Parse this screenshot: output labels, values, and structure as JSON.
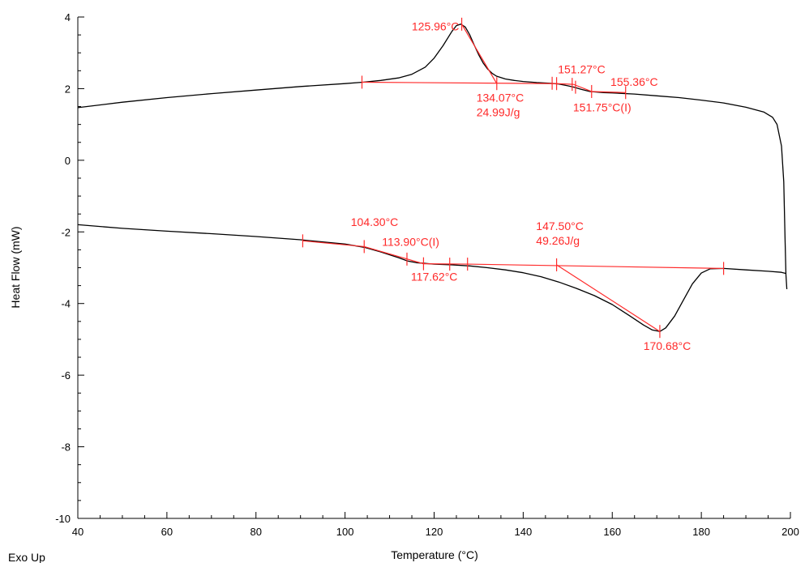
{
  "chart_data": {
    "type": "line",
    "xlabel": "Temperature (°C)",
    "ylabel": "Heat Flow (mW)",
    "footer_label": "Exo Up",
    "xlim": [
      40,
      200
    ],
    "ylim": [
      -10,
      4
    ],
    "x_ticks": [
      40,
      60,
      80,
      100,
      120,
      140,
      160,
      180,
      200
    ],
    "y_ticks": [
      4,
      2,
      0,
      -2,
      -4,
      -6,
      -8,
      -10
    ],
    "x_minor_step": 5,
    "y_minor_step": 0.5,
    "grid": false,
    "colors": {
      "curve": "#000000",
      "analysis": "#ff2a2a",
      "axis": "#000000"
    },
    "series": [
      {
        "x": [
          40,
          50,
          60,
          70,
          80,
          90,
          100,
          104,
          108,
          112,
          115,
          118,
          120,
          122,
          124,
          125,
          126,
          127,
          128,
          129,
          130,
          131,
          132,
          133,
          134,
          136,
          138,
          140,
          143,
          146,
          148,
          150,
          151.5,
          153,
          155,
          158,
          160,
          165,
          170,
          175,
          180,
          185,
          190,
          194,
          196,
          197,
          198,
          198.5,
          198.8,
          199,
          199.2
        ],
        "y": [
          1.47,
          1.62,
          1.75,
          1.86,
          1.96,
          2.06,
          2.14,
          2.18,
          2.23,
          2.3,
          2.4,
          2.6,
          2.85,
          3.2,
          3.6,
          3.76,
          3.8,
          3.72,
          3.5,
          3.22,
          2.95,
          2.72,
          2.55,
          2.43,
          2.35,
          2.27,
          2.23,
          2.2,
          2.17,
          2.15,
          2.13,
          2.08,
          2.04,
          1.98,
          1.92,
          1.89,
          1.88,
          1.85,
          1.8,
          1.75,
          1.68,
          1.6,
          1.48,
          1.35,
          1.2,
          1.0,
          0.4,
          -0.6,
          -2.2,
          -3.2,
          -3.6
        ]
      },
      {
        "x": [
          40,
          50,
          60,
          70,
          80,
          90,
          100,
          104.3,
          108,
          112,
          114,
          116,
          118,
          120,
          124,
          128,
          132,
          136,
          140,
          144,
          148,
          152,
          156,
          160,
          164,
          167,
          169,
          170.7,
          172,
          174,
          176,
          178,
          180,
          182,
          185,
          190,
          195,
          198,
          199
        ],
        "y": [
          -1.8,
          -1.9,
          -1.98,
          -2.05,
          -2.13,
          -2.22,
          -2.34,
          -2.43,
          -2.56,
          -2.72,
          -2.81,
          -2.86,
          -2.88,
          -2.9,
          -2.92,
          -2.95,
          -3.0,
          -3.06,
          -3.14,
          -3.25,
          -3.4,
          -3.58,
          -3.78,
          -4.03,
          -4.35,
          -4.6,
          -4.74,
          -4.78,
          -4.68,
          -4.35,
          -3.9,
          -3.45,
          -3.15,
          -3.03,
          -3.02,
          -3.06,
          -3.1,
          -3.13,
          -3.16
        ]
      }
    ],
    "analysis_lines": [
      {
        "x": [
          103.8,
          147.5
        ],
        "y": [
          2.18,
          2.14
        ]
      },
      {
        "x": [
          126.2,
          134.07
        ],
        "y": [
          3.8,
          2.14
        ]
      },
      {
        "x": [
          147.5,
          151.27
        ],
        "y": [
          2.14,
          2.12
        ]
      },
      {
        "x": [
          151.27,
          155.36
        ],
        "y": [
          2.12,
          1.92
        ]
      },
      {
        "x": [
          155.36,
          163.0
        ],
        "y": [
          1.92,
          1.89
        ]
      },
      {
        "x": [
          90.5,
          104.3
        ],
        "y": [
          -2.25,
          -2.41
        ]
      },
      {
        "x": [
          104.3,
          117.62
        ],
        "y": [
          -2.41,
          -2.89
        ]
      },
      {
        "x": [
          117.62,
          127.5
        ],
        "y": [
          -2.89,
          -2.9
        ]
      },
      {
        "x": [
          127.5,
          185.0
        ],
        "y": [
          -2.9,
          -3.02
        ]
      },
      {
        "x": [
          147.5,
          170.68
        ],
        "y": [
          -2.92,
          -4.78
        ]
      }
    ],
    "markers": [
      {
        "x": 103.8,
        "y": 2.18
      },
      {
        "x": 126.2,
        "y": 3.8
      },
      {
        "x": 134.07,
        "y": 2.14
      },
      {
        "x": 146.5,
        "y": 2.15
      },
      {
        "x": 147.5,
        "y": 2.14
      },
      {
        "x": 151.0,
        "y": 2.12
      },
      {
        "x": 151.75,
        "y": 2.04
      },
      {
        "x": 155.36,
        "y": 1.92
      },
      {
        "x": 163.0,
        "y": 1.89
      },
      {
        "x": 90.5,
        "y": -2.25
      },
      {
        "x": 104.3,
        "y": -2.41
      },
      {
        "x": 113.9,
        "y": -2.76
      },
      {
        "x": 117.62,
        "y": -2.89
      },
      {
        "x": 123.5,
        "y": -2.9
      },
      {
        "x": 127.5,
        "y": -2.9
      },
      {
        "x": 147.5,
        "y": -2.92
      },
      {
        "x": 170.68,
        "y": -4.78
      },
      {
        "x": 185.0,
        "y": -3.02
      }
    ],
    "annotations": [
      {
        "lines": [
          "125.96°C"
        ],
        "x": 120.3,
        "y": 3.63,
        "anchor": "middle"
      },
      {
        "lines": [
          "134.07°C",
          "24.99J/g"
        ],
        "x": 129.5,
        "y": 1.64,
        "anchor": "start"
      },
      {
        "lines": [
          "151.27°C"
        ],
        "x": 147.8,
        "y": 2.43,
        "anchor": "start"
      },
      {
        "lines": [
          "155.36°C"
        ],
        "x": 159.6,
        "y": 2.08,
        "anchor": "start"
      },
      {
        "lines": [
          "151.75°C(I)"
        ],
        "x": 151.2,
        "y": 1.36,
        "anchor": "start"
      },
      {
        "lines": [
          "104.30°C"
        ],
        "x": 101.3,
        "y": -1.84,
        "anchor": "start"
      },
      {
        "lines": [
          "113.90°C(I)"
        ],
        "x": 108.3,
        "y": -2.39,
        "anchor": "start"
      },
      {
        "lines": [
          "117.62°C"
        ],
        "x": 114.8,
        "y": -3.36,
        "anchor": "start"
      },
      {
        "lines": [
          "147.50°C",
          "49.26J/g"
        ],
        "x": 142.9,
        "y": -1.95,
        "anchor": "start"
      },
      {
        "lines": [
          "170.68°C"
        ],
        "x": 167.0,
        "y": -5.3,
        "anchor": "start"
      }
    ]
  }
}
